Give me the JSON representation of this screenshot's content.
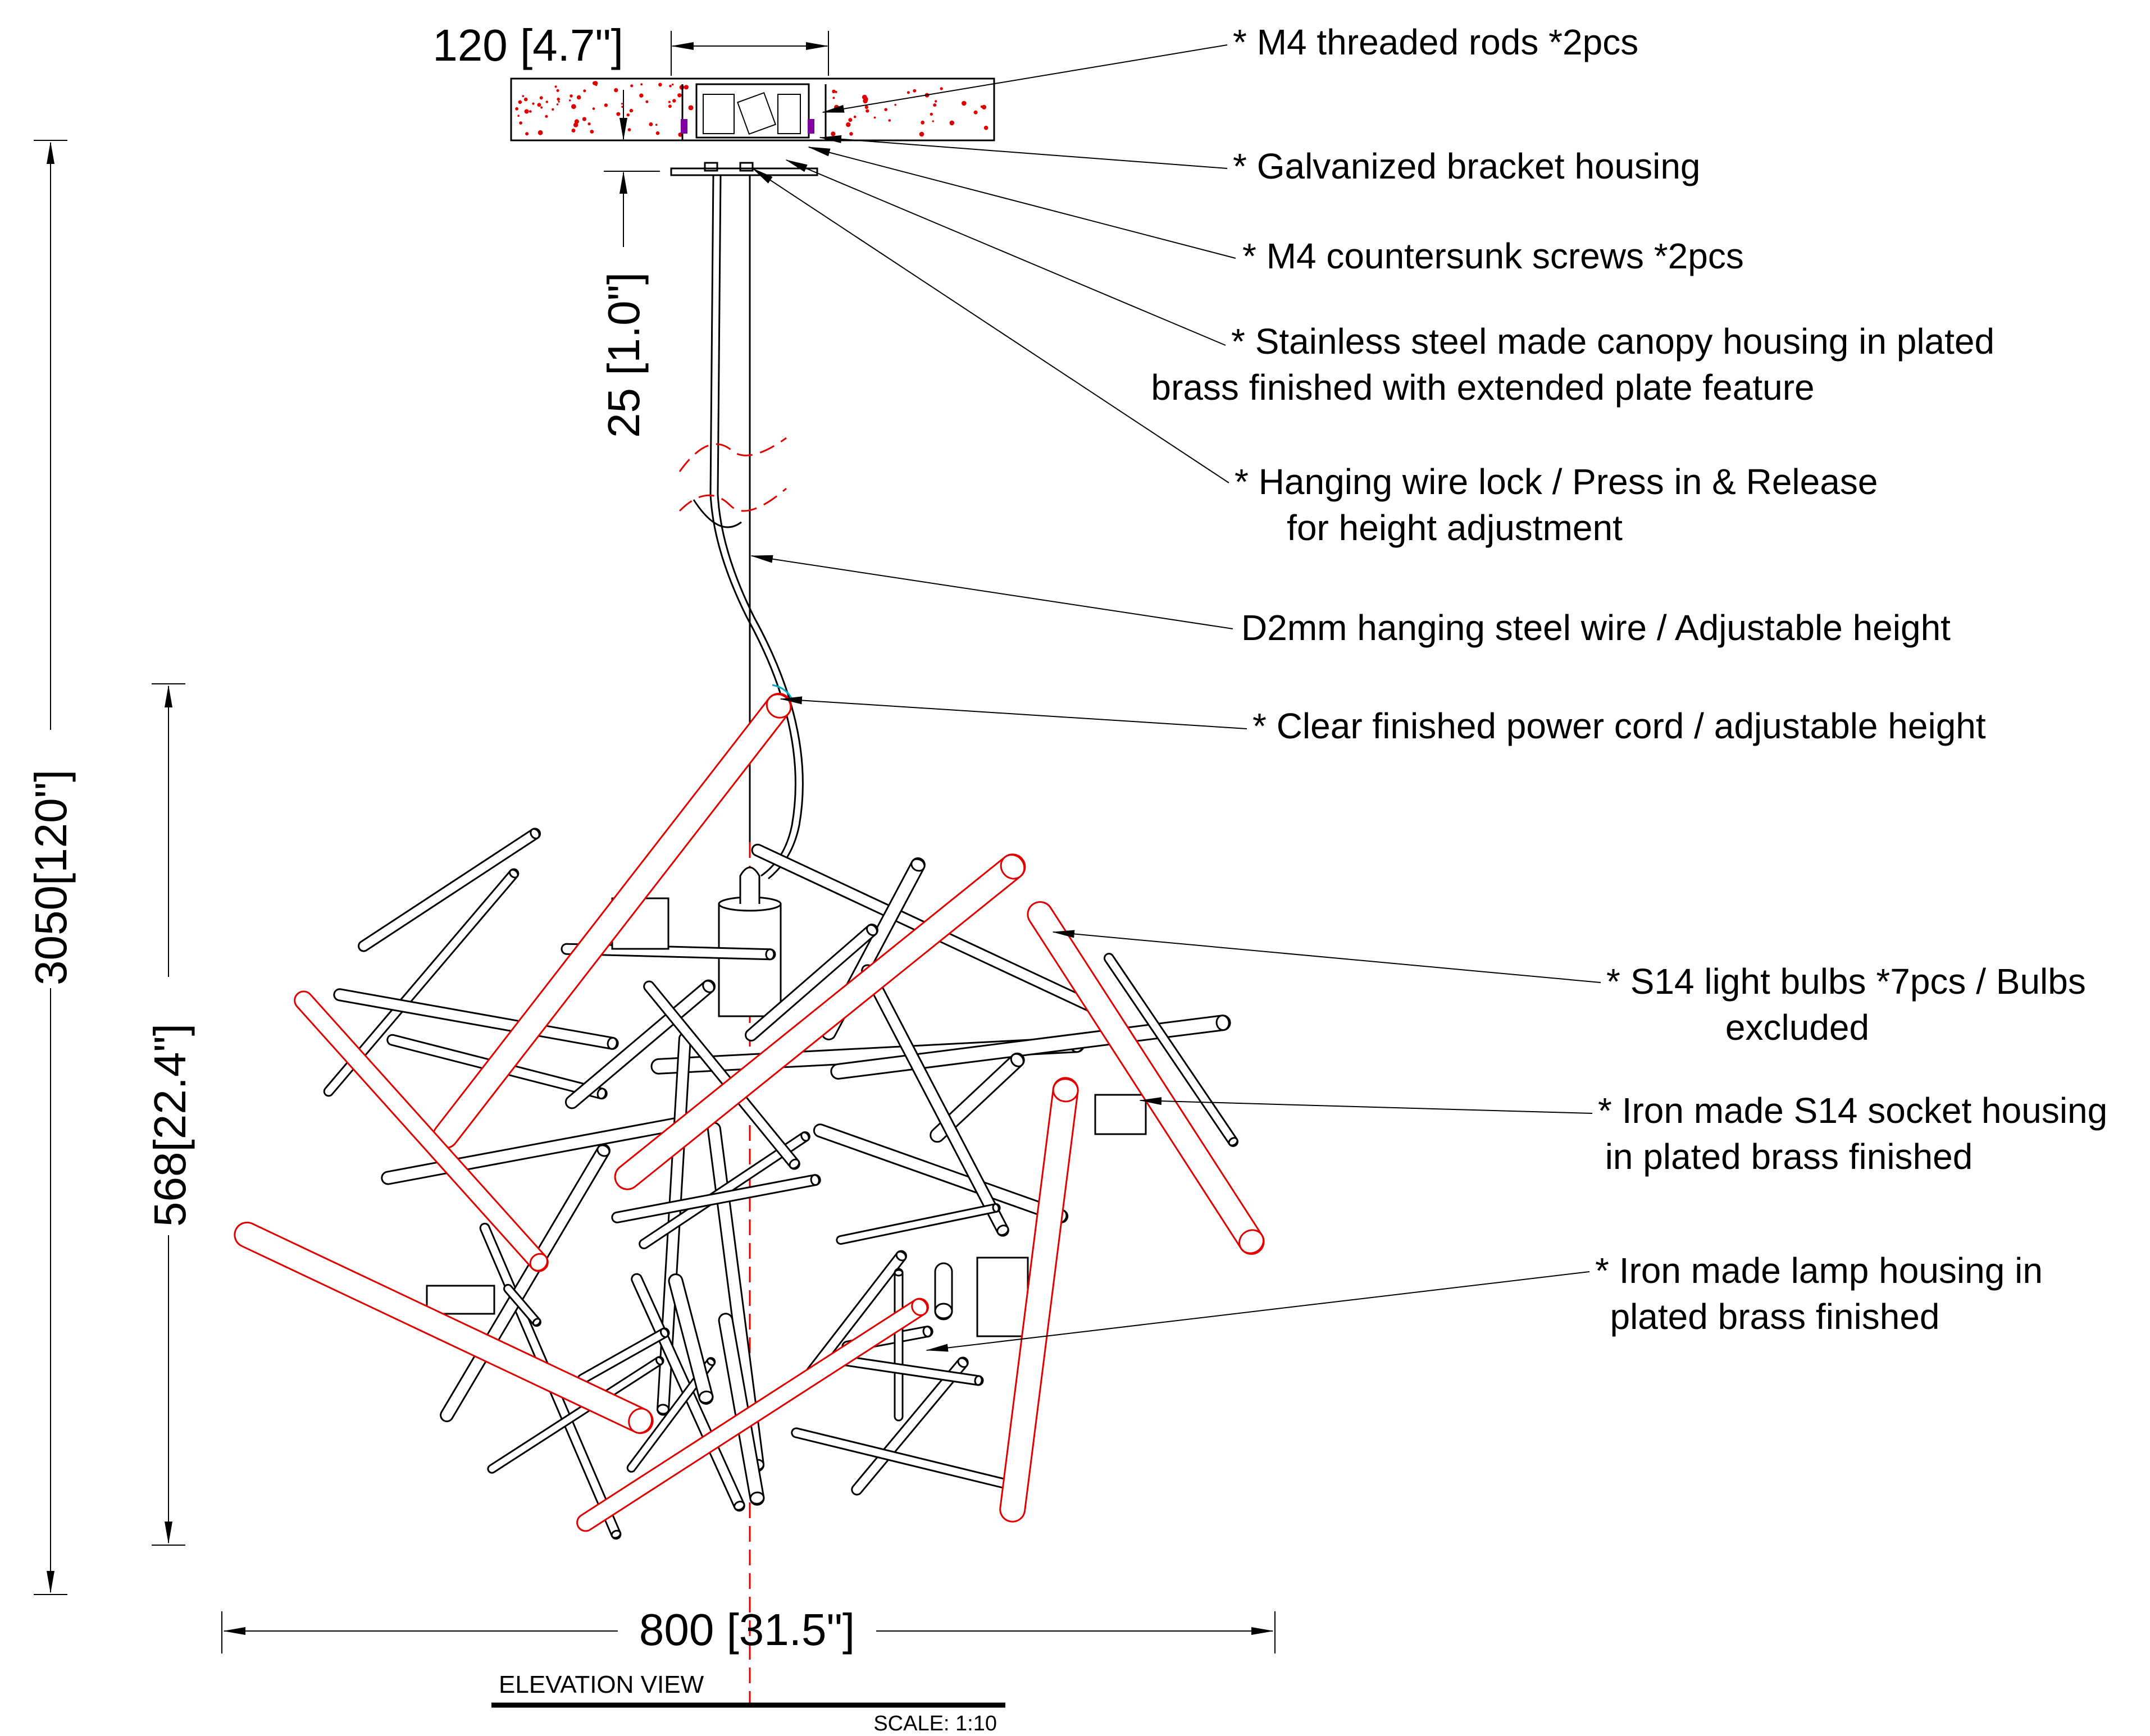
{
  "dimensions": {
    "top_width": "120 [4.7\"]",
    "canopy_gap": "25 [1.0\"]",
    "overall_height": "3050[120\"]",
    "fixture_height": "568[22.4\"]",
    "fixture_width": "800 [31.5\"]"
  },
  "callouts": [
    {
      "lines": [
        "* M4 threaded rods *2pcs"
      ]
    },
    {
      "lines": [
        "* Galvanized bracket housing"
      ]
    },
    {
      "lines": [
        "* M4 countersunk screws *2pcs"
      ]
    },
    {
      "lines": [
        "* Stainless steel made canopy housing in plated",
        "brass finished with extended plate feature"
      ]
    },
    {
      "lines": [
        "* Hanging wire lock / Press in & Release",
        "for height adjustment"
      ]
    },
    {
      "lines": [
        "D2mm hanging steel wire / Adjustable height"
      ]
    },
    {
      "lines": [
        "* Clear finished power cord / adjustable height"
      ]
    },
    {
      "lines": [
        "* S14 light bulbs *7pcs / Bulbs",
        "excluded"
      ]
    },
    {
      "lines": [
        "* Iron made S14 socket housing",
        "in plated brass finished"
      ]
    },
    {
      "lines": [
        "* Iron made lamp housing in",
        "plated brass finished"
      ]
    }
  ],
  "title_block": {
    "view_title": "ELEVATION VIEW",
    "scale": "SCALE: 1:10"
  },
  "colors": {
    "line": "#000000",
    "bulb_red": "#e00000",
    "accent_cyan": "#00b0c8",
    "ceiling_fill": "#ffffff"
  }
}
